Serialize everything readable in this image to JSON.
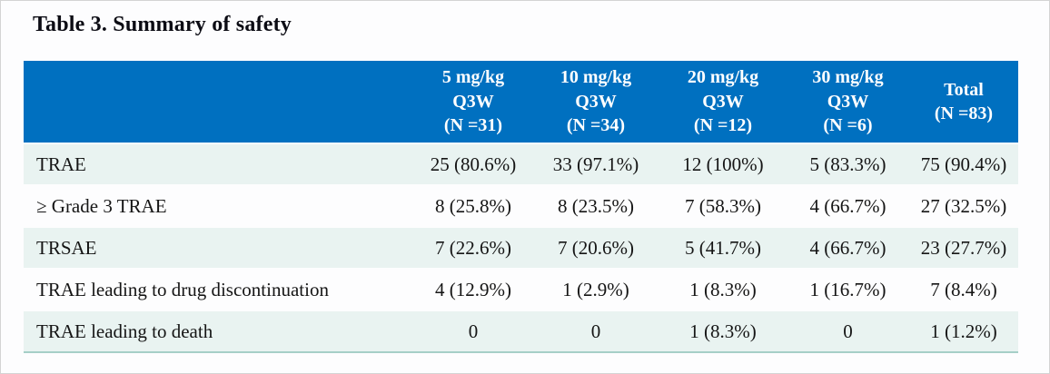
{
  "page": {
    "title": "Table 3. Summary of safety",
    "background": "#fdfdfe",
    "border_color": "#d4d4d4"
  },
  "table": {
    "header_bg": "#0070c0",
    "header_text_color": "#ffffff",
    "band_color": "#e9f3f1",
    "bottom_border_color": "#a6cfc7",
    "columns": [
      {
        "name": "5 mg/kg Q3W (N =31)",
        "lines": [
          "5 mg/kg",
          "Q3W",
          "(N =31)"
        ]
      },
      {
        "name": "10 mg/kg Q3W (N =34)",
        "lines": [
          "10 mg/kg",
          "Q3W",
          "(N =34)"
        ]
      },
      {
        "name": "20 mg/kg Q3W (N =12)",
        "lines": [
          "20 mg/kg",
          "Q3W",
          "(N =12)"
        ]
      },
      {
        "name": "30 mg/kg Q3W (N =6)",
        "lines": [
          "30 mg/kg",
          "Q3W",
          "(N =6)"
        ]
      },
      {
        "name": "Total (N =83)",
        "lines": [
          "Total",
          "(N =83)"
        ]
      }
    ],
    "rows": [
      {
        "label": "TRAE",
        "values": [
          "25 (80.6%)",
          "33 (97.1%)",
          "12 (100%)",
          "5 (83.3%)",
          "75 (90.4%)"
        ]
      },
      {
        "label": "≥ Grade 3 TRAE",
        "values": [
          "8 (25.8%)",
          "8 (23.5%)",
          "7 (58.3%)",
          "4 (66.7%)",
          "27 (32.5%)"
        ]
      },
      {
        "label": "TRSAE",
        "values": [
          "7 (22.6%)",
          "7 (20.6%)",
          "5 (41.7%)",
          "4 (66.7%)",
          "23 (27.7%)"
        ]
      },
      {
        "label": "TRAE leading to drug discontinuation",
        "values": [
          "4 (12.9%)",
          "1 (2.9%)",
          "1 (8.3%)",
          "1 (16.7%)",
          "7 (8.4%)"
        ]
      },
      {
        "label": "TRAE leading to death",
        "values": [
          "0",
          "0",
          "1 (8.3%)",
          "0",
          "1 (1.2%)"
        ]
      }
    ]
  }
}
